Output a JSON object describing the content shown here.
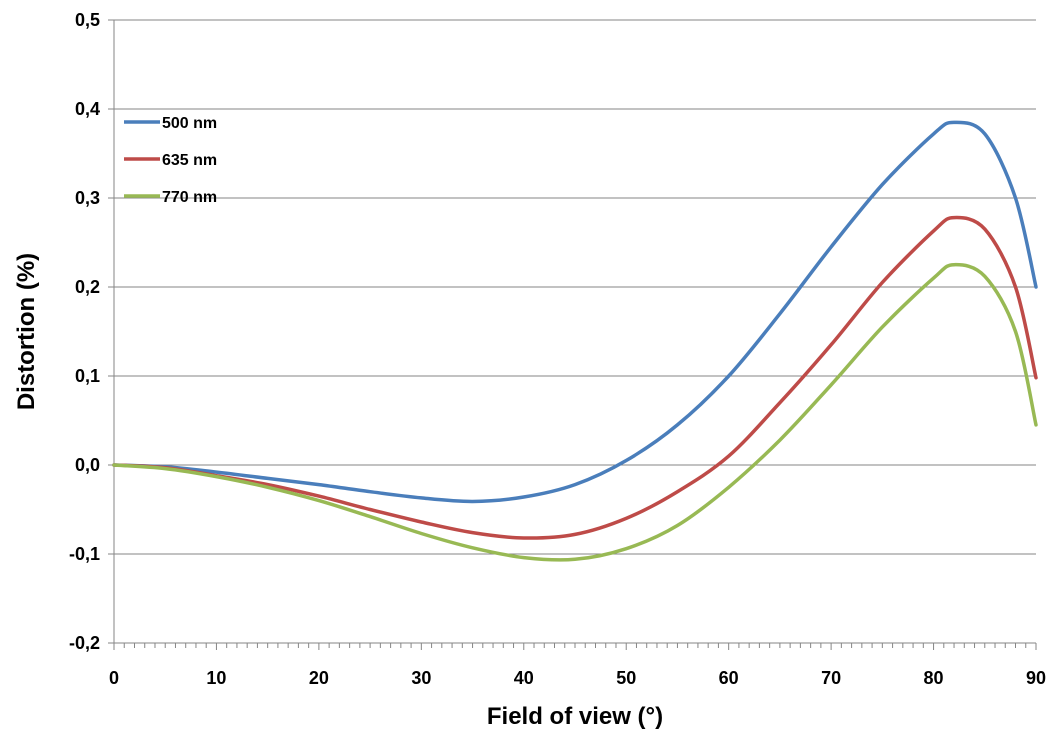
{
  "chart_data": {
    "type": "line",
    "title": "",
    "xlabel": "Field of view (°)",
    "ylabel": "Distortion (%)",
    "xlim": [
      0,
      90
    ],
    "ylim": [
      -0.2,
      0.5
    ],
    "x_ticks": [
      0,
      10,
      20,
      30,
      40,
      50,
      60,
      70,
      80,
      90
    ],
    "x_tick_labels": [
      "0",
      "10",
      "20",
      "30",
      "40",
      "50",
      "60",
      "70",
      "80",
      "90"
    ],
    "y_ticks": [
      -0.2,
      -0.1,
      0.0,
      0.1,
      0.2,
      0.3,
      0.4,
      0.5
    ],
    "y_tick_labels": [
      "-0,2",
      "-0,1",
      "0,0",
      "0,1",
      "0,2",
      "0,3",
      "0,4",
      "0,5"
    ],
    "grid": "horizontal",
    "legend_position": "top-left",
    "x": [
      0,
      5,
      10,
      15,
      20,
      25,
      30,
      35,
      40,
      45,
      50,
      55,
      60,
      65,
      70,
      75,
      80,
      82,
      85,
      88,
      90
    ],
    "series": [
      {
        "name": "500 nm",
        "color": "#4a7ebb",
        "values": [
          0,
          -0.002,
          -0.008,
          -0.015,
          -0.022,
          -0.03,
          -0.037,
          -0.041,
          -0.036,
          -0.022,
          0.005,
          0.045,
          0.1,
          0.17,
          0.245,
          0.315,
          0.372,
          0.385,
          0.372,
          0.3,
          0.2
        ]
      },
      {
        "name": "635 nm",
        "color": "#be4b48",
        "values": [
          0,
          -0.003,
          -0.012,
          -0.022,
          -0.035,
          -0.05,
          -0.064,
          -0.076,
          -0.082,
          -0.078,
          -0.06,
          -0.03,
          0.01,
          0.07,
          0.135,
          0.205,
          0.263,
          0.278,
          0.265,
          0.2,
          0.098
        ]
      },
      {
        "name": "770 nm",
        "color": "#98b954",
        "values": [
          0,
          -0.004,
          -0.013,
          -0.025,
          -0.04,
          -0.058,
          -0.077,
          -0.093,
          -0.104,
          -0.106,
          -0.094,
          -0.068,
          -0.025,
          0.028,
          0.09,
          0.155,
          0.21,
          0.225,
          0.212,
          0.15,
          0.045
        ]
      }
    ]
  }
}
